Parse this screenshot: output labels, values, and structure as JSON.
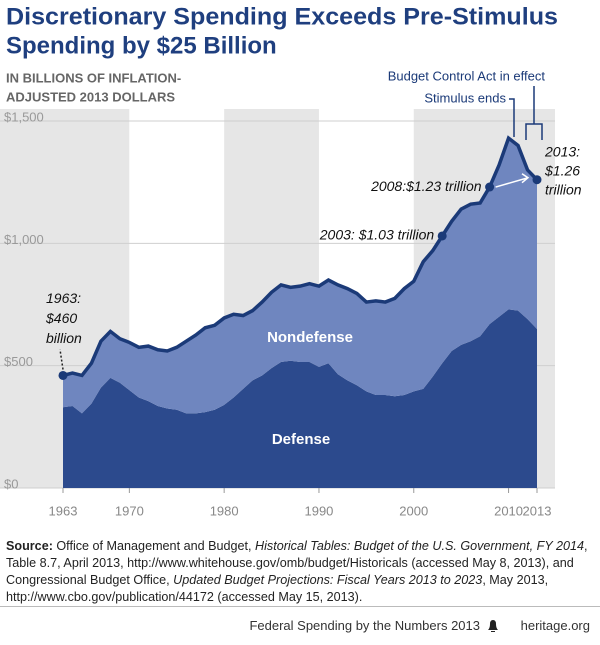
{
  "chart_data": {
    "type": "stacked-area",
    "title": [
      "Discretionary Spending Exceeds Pre-Stimulus",
      "Spending by $25 Billion"
    ],
    "subtitle": [
      "IN BILLIONS OF INFLATION-",
      "ADJUSTED 2013 DOLLARS"
    ],
    "x": [
      1963,
      1964,
      1965,
      1966,
      1967,
      1968,
      1969,
      1970,
      1971,
      1972,
      1973,
      1974,
      1975,
      1976,
      1977,
      1978,
      1979,
      1980,
      1981,
      1982,
      1983,
      1984,
      1985,
      1986,
      1987,
      1988,
      1989,
      1990,
      1991,
      1992,
      1993,
      1994,
      1995,
      1996,
      1997,
      1998,
      1999,
      2000,
      2001,
      2002,
      2003,
      2004,
      2005,
      2006,
      2007,
      2008,
      2009,
      2010,
      2011,
      2012,
      2013
    ],
    "series": [
      {
        "name": "Defense",
        "color": "#2c4a8d",
        "values": [
          330,
          335,
          305,
          345,
          410,
          450,
          430,
          400,
          370,
          355,
          335,
          325,
          320,
          305,
          305,
          310,
          320,
          340,
          370,
          405,
          440,
          460,
          490,
          515,
          520,
          515,
          515,
          495,
          510,
          465,
          440,
          420,
          395,
          380,
          380,
          375,
          380,
          395,
          405,
          455,
          510,
          560,
          585,
          600,
          620,
          670,
          700,
          730,
          725,
          690,
          650
        ]
      },
      {
        "name": "Nondefense",
        "color": "#6f86bf",
        "values": [
          130,
          135,
          155,
          165,
          190,
          190,
          180,
          195,
          205,
          225,
          230,
          235,
          255,
          295,
          320,
          345,
          345,
          355,
          340,
          300,
          285,
          300,
          310,
          315,
          300,
          310,
          320,
          330,
          340,
          365,
          375,
          375,
          365,
          385,
          380,
          400,
          435,
          450,
          520,
          515,
          520,
          530,
          555,
          560,
          545,
          560,
          620,
          700,
          675,
          610,
          610
        ]
      }
    ],
    "line_color": "#1b3a78",
    "xlim": [
      1963,
      2013
    ],
    "xticks": [
      1963,
      1970,
      1980,
      1990,
      2000,
      2010,
      2013
    ],
    "ylim": [
      0,
      1500
    ],
    "yticks": [
      {
        "value": 0,
        "label": "$0"
      },
      {
        "value": 500,
        "label": "$500"
      },
      {
        "value": 1000,
        "label": "$1,000"
      },
      {
        "value": 1500,
        "label": "$1,500"
      }
    ],
    "grid": true,
    "annotations": [
      {
        "x": 1963,
        "text": [
          "1963:",
          "$460",
          "billion"
        ]
      },
      {
        "x": 2003,
        "text": [
          "2003: $1.03 trillion"
        ]
      },
      {
        "x": 2008,
        "text": [
          "2008:$1.23 trillion"
        ]
      },
      {
        "x": 2013,
        "text": [
          "2013:",
          "$1.26",
          "trillion"
        ]
      }
    ],
    "events": [
      "Budget Control Act in effect",
      "Stimulus ends"
    ],
    "source_label": "Source:",
    "source": [
      "Office of Management and Budget, ",
      "Historical Tables: Budget of the U.S. Government, FY 2014",
      ", Table 8.7, April 2013, http://www.whitehouse.gov/omb/budget/Historicals (accessed May 8, 2013), and Congressional Budget Office, ",
      "Updated Budget Projections: Fiscal Years 2013 to 2023",
      ", May 2013, http://www.cbo.gov/publication/44172 (accessed May 15, 2013)."
    ],
    "footer": [
      "Federal Spending by the Numbers 2013",
      "heritage.org"
    ]
  }
}
